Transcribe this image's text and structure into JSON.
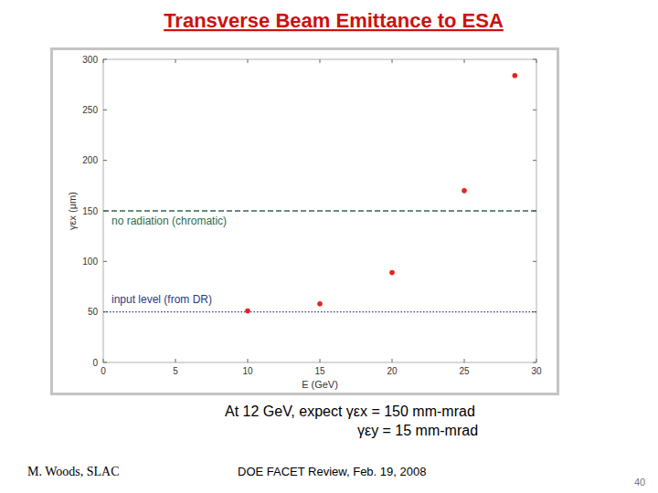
{
  "chart_data": {
    "type": "scatter",
    "title": "Transverse Beam Emittance to ESA",
    "x": [
      10,
      15,
      20,
      25,
      28.5
    ],
    "values": [
      51,
      58,
      89,
      170,
      284
    ],
    "color": "#e8211d",
    "marker": "circle",
    "xlim": [
      0,
      30
    ],
    "ylim": [
      0,
      300
    ],
    "xticks": [
      0,
      5,
      10,
      15,
      20,
      25,
      30
    ],
    "yticks": [
      0,
      50,
      100,
      150,
      200,
      250,
      300
    ],
    "x_label": "E (GeV)",
    "y_label": "γεx (μm)",
    "reference_lines": [
      {
        "value": 150,
        "label": "no radiation (chromatic)",
        "color": "#2f6b4f",
        "line_style": "dashed"
      },
      {
        "value": 50,
        "label": "input level (from DR)",
        "color": "#2b3a80",
        "line_style": "dotted"
      }
    ]
  },
  "notes": [
    "At 12 GeV, expect γεx = 150 mm-mrad",
    "γεy = 15 mm-mrad"
  ],
  "footer": {
    "author": "M. Woods, SLAC",
    "event": "DOE FACET Review, Feb. 19, 2008",
    "page": 40
  }
}
